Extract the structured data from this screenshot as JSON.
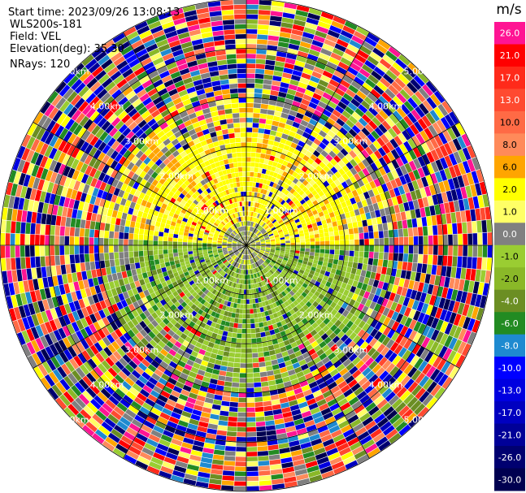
{
  "header": {
    "start_time": "Start time: 2023/09/26 13:08:13",
    "instrument": "WLS200s-181",
    "field": "Field: VEL",
    "elevation": "Elevation(deg): 35.30",
    "nrays": "NRays: 120"
  },
  "range_rings": [
    {
      "km": 1.0,
      "label": "1.00km"
    },
    {
      "km": 2.0,
      "label": "2.00km"
    },
    {
      "km": 3.0,
      "label": "3.00km"
    },
    {
      "km": 4.0,
      "label": "4.00km"
    },
    {
      "km": 5.0,
      "label": "5.00km"
    }
  ],
  "colorbar": {
    "unit": "m/s",
    "levels": [
      {
        "label": "26.0",
        "color": "#ff1493"
      },
      {
        "label": "21.0",
        "color": "#ff0000"
      },
      {
        "label": "17.0",
        "color": "#ff2a1a"
      },
      {
        "label": "13.0",
        "color": "#ff4a30"
      },
      {
        "label": "10.0",
        "color": "#ff6a45"
      },
      {
        "label": "8.0",
        "color": "#ff8a5a"
      },
      {
        "label": "6.0",
        "color": "#ffa500"
      },
      {
        "label": "2.0",
        "color": "#ffff00"
      },
      {
        "label": "1.0",
        "color": "#ffff66"
      },
      {
        "label": "0.0",
        "color": "#808080"
      },
      {
        "label": "-1.0",
        "color": "#9acd32"
      },
      {
        "label": "-2.0",
        "color": "#8ab828"
      },
      {
        "label": "-4.0",
        "color": "#6b8e23"
      },
      {
        "label": "-6.0",
        "color": "#228b22"
      },
      {
        "label": "-8.0",
        "color": "#1e8ad0"
      },
      {
        "label": "-10.0",
        "color": "#0000ff"
      },
      {
        "label": "-13.0",
        "color": "#0000e0"
      },
      {
        "label": "-17.0",
        "color": "#0000c0"
      },
      {
        "label": "-21.0",
        "color": "#000098"
      },
      {
        "label": "-26.0",
        "color": "#000070"
      },
      {
        "label": "-30.0",
        "color": "#000050"
      }
    ]
  },
  "chart_data": {
    "type": "heatmap",
    "title": "",
    "field": "VEL",
    "unit": "m/s",
    "nrays": 120,
    "elevation_deg": 35.3,
    "range_km": [
      0,
      5.0
    ],
    "gate_spacing_km": 0.1,
    "velocity_range": [
      -30.0,
      26.0
    ],
    "pattern": [
      {
        "range_km": [
          0.0,
          0.5
        ],
        "sector": "all",
        "dominant": "0.0"
      },
      {
        "range_km": [
          0.5,
          2.5
        ],
        "sector": "north",
        "dominant": "2.0 to 6.0"
      },
      {
        "range_km": [
          0.5,
          2.5
        ],
        "sector": "south",
        "dominant": "-6.0 to -1.0"
      },
      {
        "range_km": [
          2.5,
          3.0
        ],
        "sector": "all",
        "dominant": "mixed"
      },
      {
        "range_km": [
          3.0,
          5.0
        ],
        "sector": "all",
        "dominant": "noise"
      }
    ]
  }
}
